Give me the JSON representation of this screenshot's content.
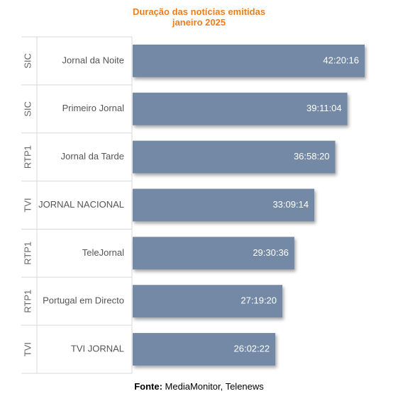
{
  "footer": {
    "label": "Fonte:",
    "text": "MediaMonitor, Telenews"
  },
  "chart_data": {
    "type": "bar",
    "orientation": "horizontal",
    "title": [
      "Duração das notícias emitidas",
      "janeiro 2025"
    ],
    "title_color": "#f07d1a",
    "bar_color": "#7389a6",
    "unit": "hh:mm:ss",
    "grid": false,
    "legend": "none",
    "xlim": [
      0,
      152416
    ],
    "categories": [
      {
        "channel": "SIC",
        "program": "Jornal da Noite"
      },
      {
        "channel": "SIC",
        "program": "Primeiro Jornal"
      },
      {
        "channel": "RTP1",
        "program": "Jornal da Tarde"
      },
      {
        "channel": "TVI",
        "program": "JORNAL NACIONAL"
      },
      {
        "channel": "RTP1",
        "program": "TeleJornal"
      },
      {
        "channel": "RTP1",
        "program": "Portugal em Directo"
      },
      {
        "channel": "TVI",
        "program": "TVI JORNAL"
      }
    ],
    "values": [
      152416,
      141064,
      133100,
      119354,
      106236,
      98360,
      93742
    ],
    "value_labels": [
      "42:20:16",
      "39:11:04",
      "36:58:20",
      "33:09:14",
      "29:30:36",
      "27:19:20",
      "26:02:22"
    ]
  }
}
